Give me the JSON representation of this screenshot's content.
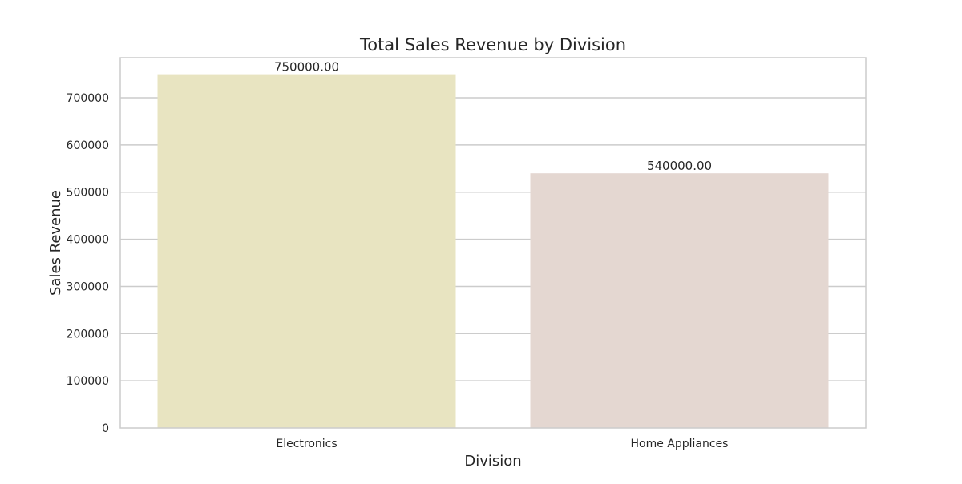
{
  "chart_data": {
    "type": "bar",
    "title": "Total Sales Revenue by Division",
    "xlabel": "Division",
    "ylabel": "Sales Revenue",
    "categories": [
      "Electronics",
      "Home Appliances"
    ],
    "values": [
      750000,
      540000
    ],
    "data_labels": [
      "750000.00",
      "540000.00"
    ],
    "bar_colors": [
      "#e8e4c1",
      "#e4d7d1"
    ],
    "ylim": [
      0,
      785000
    ],
    "yticks": [
      0,
      100000,
      200000,
      300000,
      400000,
      500000,
      600000,
      700000
    ],
    "ytick_labels": [
      "0",
      "100000",
      "200000",
      "300000",
      "400000",
      "500000",
      "600000",
      "700000"
    ],
    "grid": true,
    "grid_axis": "y",
    "grid_color": "#cccccc",
    "frame_color": "#cccccc",
    "background": "#ffffff",
    "legend": "none"
  }
}
